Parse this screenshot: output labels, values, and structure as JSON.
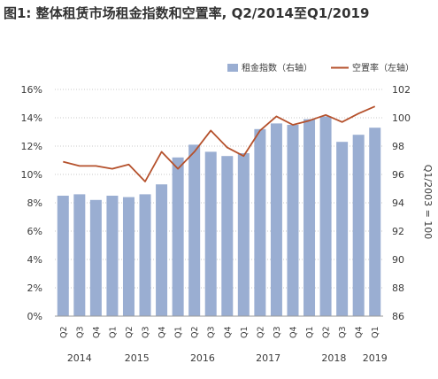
{
  "title": "图1: 整体租赁市场租金指数和空置率, Q2/2014至Q1/2019",
  "chart_data": {
    "type": "bar",
    "categories": [
      "Q2",
      "Q3",
      "Q4",
      "Q1",
      "Q2",
      "Q3",
      "Q4",
      "Q1",
      "Q2",
      "Q3",
      "Q4",
      "Q1",
      "Q2",
      "Q3",
      "Q4",
      "Q1",
      "Q2",
      "Q3",
      "Q4",
      "Q1"
    ],
    "years": [
      {
        "label": "2014",
        "from": 0,
        "to": 2
      },
      {
        "label": "2015",
        "from": 3,
        "to": 6
      },
      {
        "label": "2016",
        "from": 7,
        "to": 10
      },
      {
        "label": "2017",
        "from": 11,
        "to": 14
      },
      {
        "label": "2018",
        "from": 15,
        "to": 18
      },
      {
        "label": "2019",
        "from": 19,
        "to": 19
      }
    ],
    "series": [
      {
        "name": "租金指数（右轴）",
        "type": "bar",
        "axis": "right",
        "color": "#9aaed2",
        "values": [
          94.5,
          94.6,
          94.2,
          94.5,
          94.4,
          94.6,
          95.3,
          97.2,
          98.1,
          97.6,
          97.3,
          97.5,
          99.2,
          99.6,
          99.5,
          99.9,
          100.1,
          98.3,
          98.8,
          99.3
        ]
      },
      {
        "name": "空置率（左轴）",
        "type": "line",
        "axis": "left",
        "color": "#b5512c",
        "values": [
          10.9,
          10.6,
          10.6,
          10.4,
          10.7,
          9.5,
          11.6,
          10.4,
          11.6,
          13.1,
          11.9,
          11.3,
          13.1,
          14.1,
          13.5,
          13.8,
          14.2,
          13.7,
          14.3,
          14.8
        ]
      }
    ],
    "y_left": {
      "ticks": [
        "0%",
        "2%",
        "4%",
        "6%",
        "8%",
        "10%",
        "12%",
        "14%",
        "16%"
      ],
      "min": 0,
      "max": 16
    },
    "y_right": {
      "ticks": [
        "86",
        "88",
        "90",
        "92",
        "94",
        "96",
        "98",
        "100",
        "102"
      ],
      "min": 86,
      "max": 102,
      "label": "Q1/2003 = 100"
    },
    "grid": true,
    "legend_position": "top-right"
  }
}
